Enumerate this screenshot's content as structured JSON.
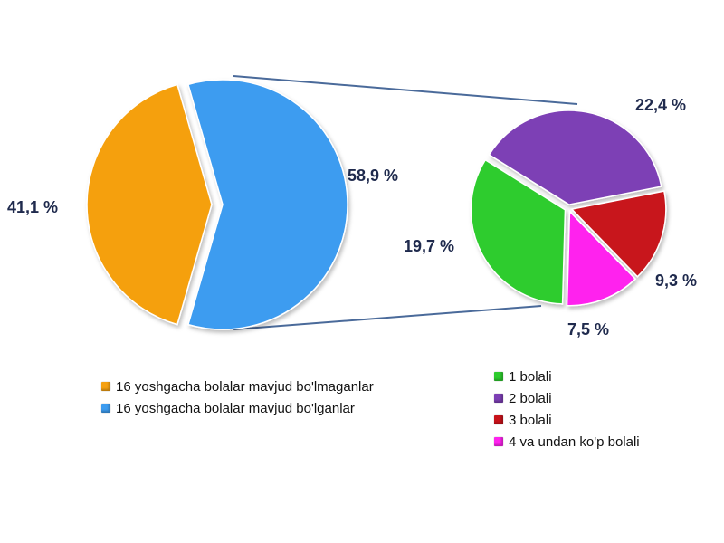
{
  "chart_data": [
    {
      "type": "pie",
      "slices": [
        {
          "label": "16 yoshgacha bolalar mavjud bo'lmaganlar",
          "value": 41.1,
          "value_label": "41,1 %",
          "color": "#f5a011"
        },
        {
          "label": "16 yoshgacha bolalar mavjud bo'lganlar",
          "value": 58.9,
          "value_label": "58,9 %",
          "color": "#3d9cf0"
        }
      ]
    },
    {
      "type": "pie",
      "slices": [
        {
          "label": "1 bolali",
          "value": 19.7,
          "value_label": "19,7 %",
          "color": "#2ecc2e"
        },
        {
          "label": "2 bolali",
          "value": 22.4,
          "value_label": "22,4 %",
          "color": "#7d3fb5"
        },
        {
          "label": "3 bolali",
          "value": 9.3,
          "value_label": "9,3 %",
          "color": "#c8121a"
        },
        {
          "label": "4 va undan ko'p bolali",
          "value": 7.5,
          "value_label": "7,5 %",
          "color": "#ff22ee"
        }
      ]
    }
  ]
}
